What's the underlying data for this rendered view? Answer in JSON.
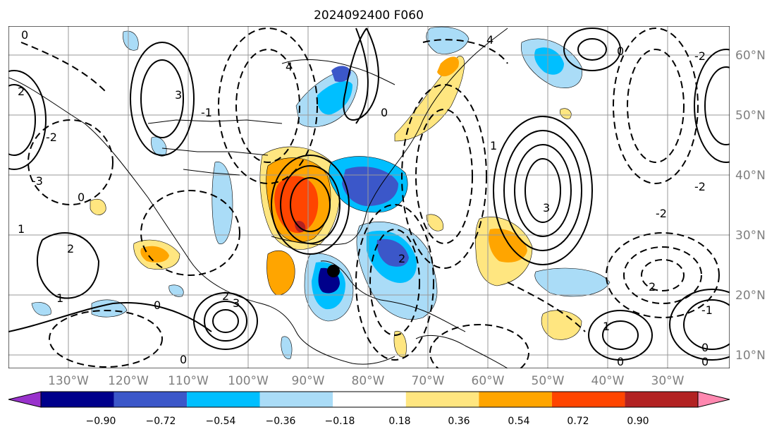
{
  "title": "2024092400 F060",
  "longitude_labels": [
    "130°W",
    "120°W",
    "110°W",
    "100°W",
    "90°W",
    "80°W",
    "70°W",
    "60°W",
    "50°W",
    "40°W",
    "30°W"
  ],
  "latitude_labels": [
    "60°N",
    "50°N",
    "40°N",
    "30°N",
    "20°N",
    "10°N"
  ],
  "colorbar": {
    "ticks": [
      "−0.90",
      "−0.72",
      "−0.54",
      "−0.36",
      "−0.18",
      "0.18",
      "0.36",
      "0.54",
      "0.72",
      "0.90"
    ],
    "colors": [
      "#9932cc",
      "#00008b",
      "#3b57c9",
      "#00bfff",
      "#aadcf7",
      "#ffffff",
      "#ffe680",
      "#ffa500",
      "#ff4500",
      "#b22222",
      "#ff88b0"
    ]
  },
  "contour_labels": [
    "0",
    "2",
    "3",
    "4",
    "-1",
    "-2",
    "-3",
    "1",
    "0",
    "2",
    "4",
    "3",
    "-2",
    "2",
    "0",
    "0",
    "-2",
    "1",
    "2",
    "3",
    "0",
    "0",
    "2",
    "0",
    "0",
    "1",
    "-1",
    "0",
    "1",
    "-2"
  ],
  "marker": {
    "name": "black-dot",
    "color": "#000000"
  },
  "colors": {
    "land_outline": "#000000",
    "grid": "#999999"
  }
}
